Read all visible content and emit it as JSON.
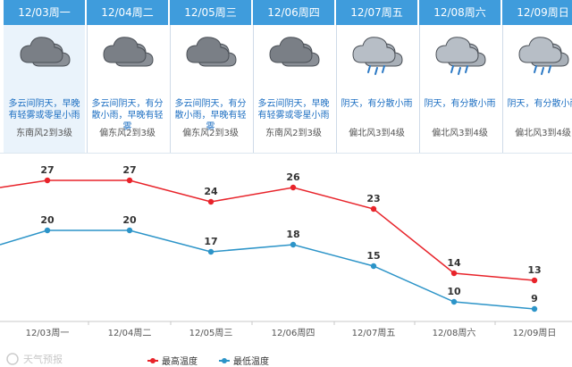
{
  "days": [
    {
      "date": "12/03周一",
      "weather": "多云间阴天，早晚有轻雾或零星小雨",
      "wind": "东南风2到3级",
      "icon": "cloudy-icon"
    },
    {
      "date": "12/04周二",
      "weather": "多云间阴天，有分散小雨，早晚有轻雾",
      "wind": "偏东风2到3级",
      "icon": "cloudy-icon"
    },
    {
      "date": "12/05周三",
      "weather": "多云间阴天，有分散小雨，早晚有轻雾",
      "wind": "偏东风2到3级",
      "icon": "cloudy-icon"
    },
    {
      "date": "12/06周四",
      "weather": "多云间阴天，早晚有轻雾或零星小雨",
      "wind": "东南风2到3级",
      "icon": "cloudy-icon"
    },
    {
      "date": "12/07周五",
      "weather": "阴天，有分散小雨",
      "wind": "偏北风3到4级",
      "icon": "rain-icon"
    },
    {
      "date": "12/08周六",
      "weather": "阴天，有分散小雨",
      "wind": "偏北风3到4级",
      "icon": "rain-icon"
    },
    {
      "date": "12/09周日",
      "weather": "阴天，有分散小雨",
      "wind": "偏北风3到4级",
      "icon": "rain-icon"
    }
  ],
  "colors": {
    "header": "#3f9cdc",
    "high": "#e8232a",
    "low": "#2c94c8",
    "desc": "#1d6fc2"
  },
  "legend": {
    "high": "最高温度",
    "low": "最低温度"
  },
  "watermark": "天气预报",
  "chart_data": {
    "type": "line",
    "categories": [
      "12/03周一",
      "12/04周二",
      "12/05周三",
      "12/06周四",
      "12/07周五",
      "12/08周六",
      "12/09周日"
    ],
    "series": [
      {
        "name": "最高温度",
        "values": [
          27,
          27,
          24,
          26,
          23,
          14,
          13
        ]
      },
      {
        "name": "最低温度",
        "values": [
          20,
          20,
          17,
          18,
          15,
          10,
          9
        ]
      }
    ],
    "prior_day": {
      "high": 26,
      "low": 18
    },
    "ylim": [
      6,
      29
    ],
    "grid": false,
    "legend_position": "bottom"
  }
}
